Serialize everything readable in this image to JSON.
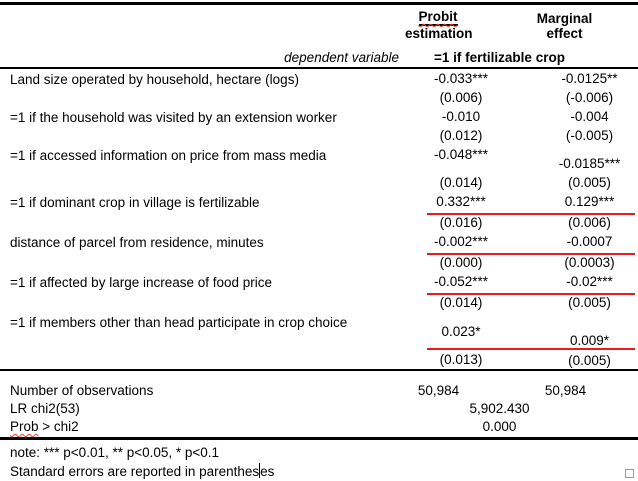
{
  "header": {
    "probit_line1": "Probit",
    "probit_line2": "estimation",
    "marginal": "Marginal effect",
    "dependent_label": "dependent variable",
    "dependent_value": "=1 if fertilizable crop"
  },
  "rows": [
    {
      "label": "Land size operated by household, hectare (logs)",
      "coef1": "-0.033***",
      "se1": "(0.006)",
      "coef2": "-0.0125**",
      "se2": "(-0.006)"
    },
    {
      "label": "=1 if the household was visited by an extension worker",
      "coef1": "-0.010",
      "se1": "(0.012)",
      "coef2": "-0.004",
      "se2": "(-0.005)"
    },
    {
      "label": "=1 if accessed information on price from mass media",
      "coef1": "-0.048***",
      "se1": "(0.014)",
      "coef2": "-0.0185***",
      "se2": "(0.005)"
    },
    {
      "label": "=1 if dominant crop in village is fertilizable",
      "coef1": "0.332***",
      "se1": "(0.016)",
      "coef2": "0.129***",
      "se2": "(0.006)"
    },
    {
      "label": "distance of parcel from residence, minutes",
      "coef1": "-0.002***",
      "se1": "(0.000)",
      "coef2": "-0.0007",
      "se2": "(0.0003)"
    },
    {
      "label": "=1 if affected by large increase of food price",
      "coef1": "-0.052***",
      "se1": "(0.014)",
      "coef2": "-0.02***",
      "se2": "(0.005)"
    },
    {
      "label": "=1 if members other than head participate in crop choice",
      "coef1": "0.023*",
      "se1": "(0.013)",
      "coef2": "0.009*",
      "se2": "(0.005)"
    }
  ],
  "stats": [
    {
      "label": "Number of observations",
      "v1": "50,984",
      "v2": "50,984"
    },
    {
      "label": "LR chi2(53)",
      "span": "5,902.430"
    },
    {
      "label_word": "Prob",
      "label_rest": " > chi2",
      "span": "0.000"
    }
  ],
  "notes": {
    "line1": "note:  *** p<0.01, ** p<0.05, * p<0.1",
    "line2_a": "Standard errors are reported in parenthes",
    "line2_b": "es"
  },
  "colors": {
    "red_annotation_line": "#e81c1c",
    "red_spellcheck_squiggle": "#f03a2d"
  }
}
